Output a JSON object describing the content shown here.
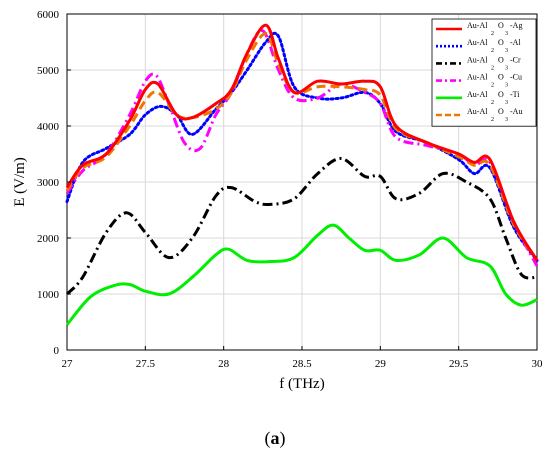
{
  "chart_data": {
    "type": "line",
    "xlabel": "f (THz)",
    "ylabel": "E (V/m)",
    "xlim": [
      27,
      30
    ],
    "ylim": [
      0,
      6000
    ],
    "xticks": [
      "27",
      "27.5",
      "28",
      "28.5",
      "29",
      "29.5",
      "30"
    ],
    "yticks": [
      "0",
      "1000",
      "2000",
      "3000",
      "4000",
      "5000",
      "6000"
    ],
    "grid": true,
    "legend_position": "top-right",
    "series": [
      {
        "name": "Au-Al2O3-Ag",
        "legend_main": "Au-Al",
        "legend_sub1": "2",
        "legend_mid": "O",
        "legend_sub2": "3",
        "legend_tail": "-Ag",
        "color": "#ff0000",
        "dash": "solid",
        "x": [
          27.0,
          27.1,
          27.25,
          27.4,
          27.5,
          27.58,
          27.7,
          27.8,
          27.95,
          28.05,
          28.15,
          28.27,
          28.35,
          28.45,
          28.6,
          28.75,
          28.9,
          29.0,
          29.1,
          29.3,
          29.5,
          29.6,
          29.7,
          29.85,
          30.0
        ],
        "y": [
          2900,
          3300,
          3500,
          4100,
          4650,
          4750,
          4200,
          4150,
          4400,
          4650,
          5300,
          5800,
          5200,
          4600,
          4800,
          4750,
          4800,
          4700,
          4000,
          3700,
          3500,
          3350,
          3400,
          2300,
          1600
        ]
      },
      {
        "name": "Au-Al2O3-Al",
        "legend_main": "Au-Al",
        "legend_sub1": "2",
        "legend_mid": "O",
        "legend_sub2": "3",
        "legend_tail": "-Al",
        "color": "#0000ff",
        "dash": "dotted",
        "x": [
          27.0,
          27.1,
          27.25,
          27.4,
          27.5,
          27.6,
          27.7,
          27.8,
          27.95,
          28.05,
          28.15,
          28.27,
          28.35,
          28.45,
          28.6,
          28.75,
          28.9,
          29.0,
          29.1,
          29.3,
          29.5,
          29.6,
          29.7,
          29.85,
          30.0
        ],
        "y": [
          2650,
          3350,
          3600,
          3850,
          4200,
          4350,
          4200,
          3850,
          4300,
          4600,
          5000,
          5500,
          5600,
          4700,
          4500,
          4500,
          4600,
          4400,
          3900,
          3700,
          3400,
          3150,
          3250,
          2200,
          1600
        ]
      },
      {
        "name": "Au-Al2O3-Cr",
        "legend_main": "Au-Al",
        "legend_sub1": "2",
        "legend_mid": "O",
        "legend_sub2": "3",
        "legend_tail": "-Cr",
        "color": "#000000",
        "dash": "dashdot",
        "x": [
          27.0,
          27.1,
          27.25,
          27.38,
          27.5,
          27.65,
          27.8,
          27.95,
          28.05,
          28.2,
          28.3,
          28.45,
          28.6,
          28.75,
          28.9,
          29.0,
          29.1,
          29.25,
          29.4,
          29.55,
          29.7,
          29.8,
          29.9,
          30.0
        ],
        "y": [
          1000,
          1300,
          2100,
          2450,
          2100,
          1650,
          2000,
          2750,
          2900,
          2650,
          2600,
          2700,
          3150,
          3420,
          3100,
          3100,
          2700,
          2800,
          3150,
          3000,
          2700,
          2000,
          1350,
          1300
        ]
      },
      {
        "name": "Au-Al2O3-Cu",
        "legend_main": "Au-Al",
        "legend_sub1": "2",
        "legend_mid": "O",
        "legend_sub2": "3",
        "legend_tail": "-Cu",
        "color": "#ff00ff",
        "dash": "dashdot",
        "x": [
          27.0,
          27.1,
          27.25,
          27.4,
          27.5,
          27.57,
          27.65,
          27.75,
          27.85,
          27.95,
          28.05,
          28.15,
          28.25,
          28.35,
          28.45,
          28.6,
          28.75,
          28.9,
          29.0,
          29.1,
          29.3,
          29.5,
          29.6,
          29.7,
          29.85,
          30.0
        ],
        "y": [
          2800,
          3200,
          3500,
          4200,
          4800,
          4900,
          4400,
          3700,
          3600,
          4200,
          4600,
          5300,
          5700,
          5000,
          4500,
          4500,
          4750,
          4600,
          4400,
          3800,
          3650,
          3500,
          3300,
          3350,
          2300,
          1500
        ]
      },
      {
        "name": "Au-Al2O3-Ti",
        "legend_main": "Au-Al",
        "legend_sub1": "2",
        "legend_mid": "O",
        "legend_sub2": "3",
        "legend_tail": "-Ti",
        "color": "#00ee00",
        "dash": "solid",
        "x": [
          27.0,
          27.15,
          27.3,
          27.4,
          27.5,
          27.65,
          27.8,
          27.95,
          28.03,
          28.15,
          28.3,
          28.45,
          28.6,
          28.7,
          28.8,
          28.9,
          29.0,
          29.1,
          29.25,
          29.4,
          29.55,
          29.7,
          29.8,
          29.9,
          30.0
        ],
        "y": [
          450,
          950,
          1150,
          1170,
          1050,
          1000,
          1300,
          1700,
          1800,
          1600,
          1580,
          1650,
          2050,
          2230,
          2000,
          1780,
          1780,
          1600,
          1700,
          2000,
          1650,
          1500,
          1000,
          800,
          900
        ]
      },
      {
        "name": "Au-Al2O3-Au",
        "legend_main": "Au-Al",
        "legend_sub1": "2",
        "legend_mid": "O",
        "legend_sub2": "3",
        "legend_tail": "-Au",
        "color": "#ee7700",
        "dash": "dashed",
        "x": [
          27.0,
          27.1,
          27.25,
          27.4,
          27.5,
          27.58,
          27.7,
          27.8,
          27.95,
          28.05,
          28.15,
          28.27,
          28.35,
          28.45,
          28.6,
          28.75,
          28.9,
          29.0,
          29.1,
          29.3,
          29.5,
          29.6,
          29.7,
          29.85,
          30.0
        ],
        "y": [
          2850,
          3250,
          3450,
          4000,
          4450,
          4600,
          4200,
          4150,
          4300,
          4600,
          5200,
          5650,
          5100,
          4600,
          4700,
          4700,
          4650,
          4550,
          3950,
          3700,
          3450,
          3300,
          3300,
          2250,
          1600
        ]
      }
    ]
  },
  "caption": {
    "open": "(",
    "label": "a",
    "close": ")"
  }
}
